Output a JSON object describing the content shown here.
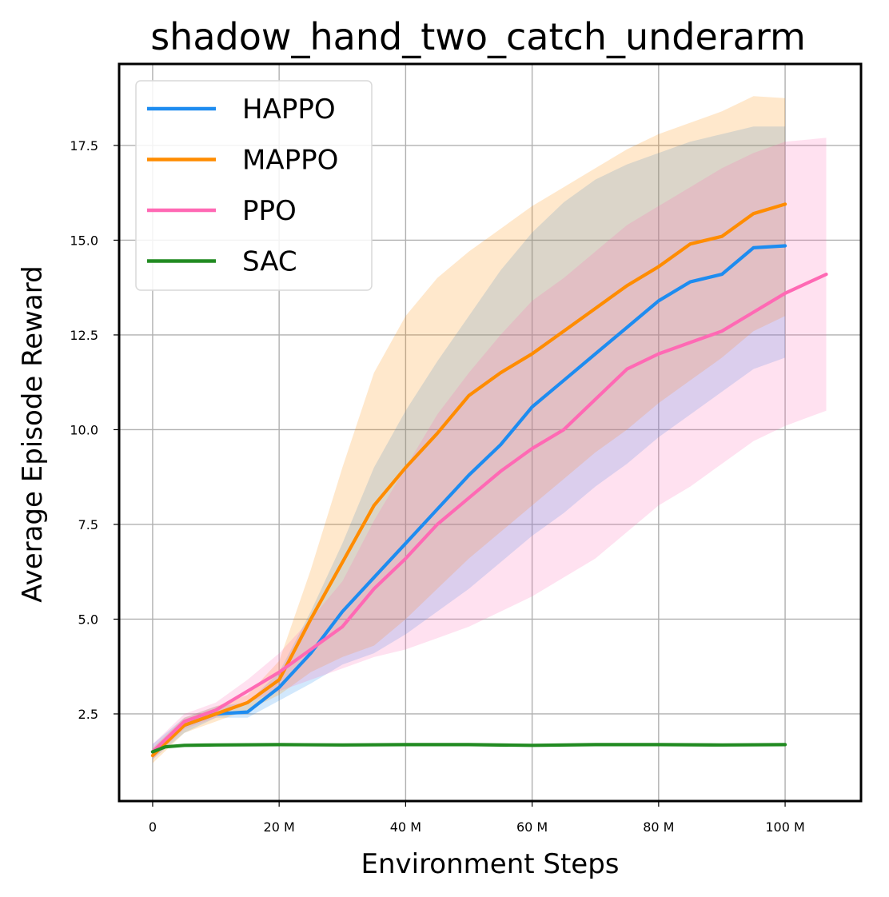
{
  "chart_data": {
    "type": "line",
    "title": "shadow_hand_two_catch_underarm",
    "xlabel": "Environment Steps",
    "ylabel": "Average Episode Reward",
    "xlim": [
      -5.3,
      112
    ],
    "ylim": [
      0.2,
      19.65
    ],
    "x_ticks": [
      {
        "value": 0,
        "label": "0"
      },
      {
        "value": 20,
        "label": "20 M"
      },
      {
        "value": 40,
        "label": "40 M"
      },
      {
        "value": 60,
        "label": "60 M"
      },
      {
        "value": 80,
        "label": "80 M"
      },
      {
        "value": 100,
        "label": "100 M"
      }
    ],
    "y_ticks": [
      {
        "value": 2.5,
        "label": "2.5"
      },
      {
        "value": 5.0,
        "label": "5.0"
      },
      {
        "value": 7.5,
        "label": "7.5"
      },
      {
        "value": 10.0,
        "label": "10.0"
      },
      {
        "value": 12.5,
        "label": "12.5"
      },
      {
        "value": 15.0,
        "label": "15.0"
      },
      {
        "value": 17.5,
        "label": "17.5"
      }
    ],
    "grid": true,
    "legend_position": "top-left",
    "series": [
      {
        "name": "HAPPO",
        "color": "#1e8cf0",
        "x": [
          0,
          5,
          10,
          15,
          20,
          25,
          30,
          35,
          40,
          45,
          50,
          55,
          60,
          65,
          70,
          75,
          80,
          85,
          90,
          95,
          100
        ],
        "y": [
          1.5,
          2.2,
          2.5,
          2.55,
          3.2,
          4.1,
          5.2,
          6.1,
          7.0,
          7.9,
          8.8,
          9.6,
          10.6,
          11.3,
          12.0,
          12.7,
          13.4,
          13.9,
          14.1,
          14.8,
          14.85
        ],
        "lower": [
          1.3,
          2.0,
          2.4,
          2.4,
          2.85,
          3.3,
          3.8,
          4.1,
          4.6,
          5.2,
          5.8,
          6.5,
          7.2,
          7.8,
          8.5,
          9.1,
          9.8,
          10.4,
          11.0,
          11.6,
          11.9
        ],
        "upper": [
          1.7,
          2.4,
          2.7,
          2.8,
          3.6,
          5.2,
          7.0,
          9.0,
          10.5,
          11.8,
          13.0,
          14.2,
          15.2,
          16.0,
          16.6,
          17.0,
          17.3,
          17.6,
          17.8,
          18.0,
          18.0
        ]
      },
      {
        "name": "MAPPO",
        "color": "#ff8c00",
        "x": [
          0,
          5,
          10,
          15,
          20,
          25,
          30,
          35,
          40,
          45,
          50,
          55,
          60,
          65,
          70,
          75,
          80,
          85,
          90,
          95,
          100
        ],
        "y": [
          1.4,
          2.2,
          2.5,
          2.8,
          3.4,
          5.0,
          6.5,
          8.0,
          9.0,
          9.9,
          10.9,
          11.5,
          12.0,
          12.6,
          13.2,
          13.8,
          14.3,
          14.9,
          15.1,
          15.7,
          15.95
        ],
        "lower": [
          1.2,
          2.0,
          2.3,
          2.6,
          3.0,
          3.6,
          4.0,
          4.3,
          5.0,
          5.8,
          6.6,
          7.3,
          8.0,
          8.7,
          9.4,
          10.0,
          10.7,
          11.3,
          11.9,
          12.6,
          13.0
        ],
        "upper": [
          1.6,
          2.4,
          2.7,
          3.0,
          3.9,
          6.3,
          9.0,
          11.5,
          13.0,
          14.0,
          14.7,
          15.3,
          15.9,
          16.4,
          16.9,
          17.4,
          17.8,
          18.1,
          18.4,
          18.8,
          18.75
        ]
      },
      {
        "name": "PPO",
        "color": "#ff69b4",
        "x": [
          0,
          5,
          10,
          15,
          20,
          25,
          30,
          35,
          40,
          45,
          50,
          55,
          60,
          65,
          70,
          75,
          80,
          85,
          90,
          95,
          100,
          106.5
        ],
        "y": [
          1.5,
          2.3,
          2.6,
          3.1,
          3.6,
          4.2,
          4.8,
          5.8,
          6.6,
          7.5,
          8.2,
          8.9,
          9.5,
          10.0,
          10.8,
          11.6,
          12.0,
          12.3,
          12.6,
          13.1,
          13.6,
          14.1
        ],
        "lower": [
          1.3,
          2.1,
          2.4,
          2.8,
          3.1,
          3.4,
          3.7,
          4.0,
          4.2,
          4.5,
          4.8,
          5.2,
          5.6,
          6.1,
          6.6,
          7.3,
          8.0,
          8.5,
          9.1,
          9.7,
          10.1,
          10.5
        ],
        "upper": [
          1.7,
          2.5,
          2.8,
          3.4,
          4.1,
          5.0,
          6.0,
          7.6,
          9.0,
          10.4,
          11.5,
          12.5,
          13.4,
          14.0,
          14.7,
          15.4,
          15.9,
          16.4,
          16.9,
          17.3,
          17.6,
          17.7
        ]
      },
      {
        "name": "SAC",
        "color": "#228b22",
        "x": [
          0,
          2,
          5,
          10,
          20,
          30,
          40,
          50,
          60,
          70,
          80,
          90,
          100
        ],
        "y": [
          1.5,
          1.63,
          1.67,
          1.68,
          1.69,
          1.68,
          1.69,
          1.69,
          1.67,
          1.69,
          1.69,
          1.68,
          1.69
        ],
        "lower": [
          1.47,
          1.6,
          1.64,
          1.65,
          1.66,
          1.65,
          1.66,
          1.66,
          1.64,
          1.66,
          1.66,
          1.65,
          1.66
        ],
        "upper": [
          1.53,
          1.66,
          1.7,
          1.71,
          1.72,
          1.71,
          1.72,
          1.72,
          1.7,
          1.72,
          1.72,
          1.71,
          1.72
        ]
      }
    ]
  }
}
